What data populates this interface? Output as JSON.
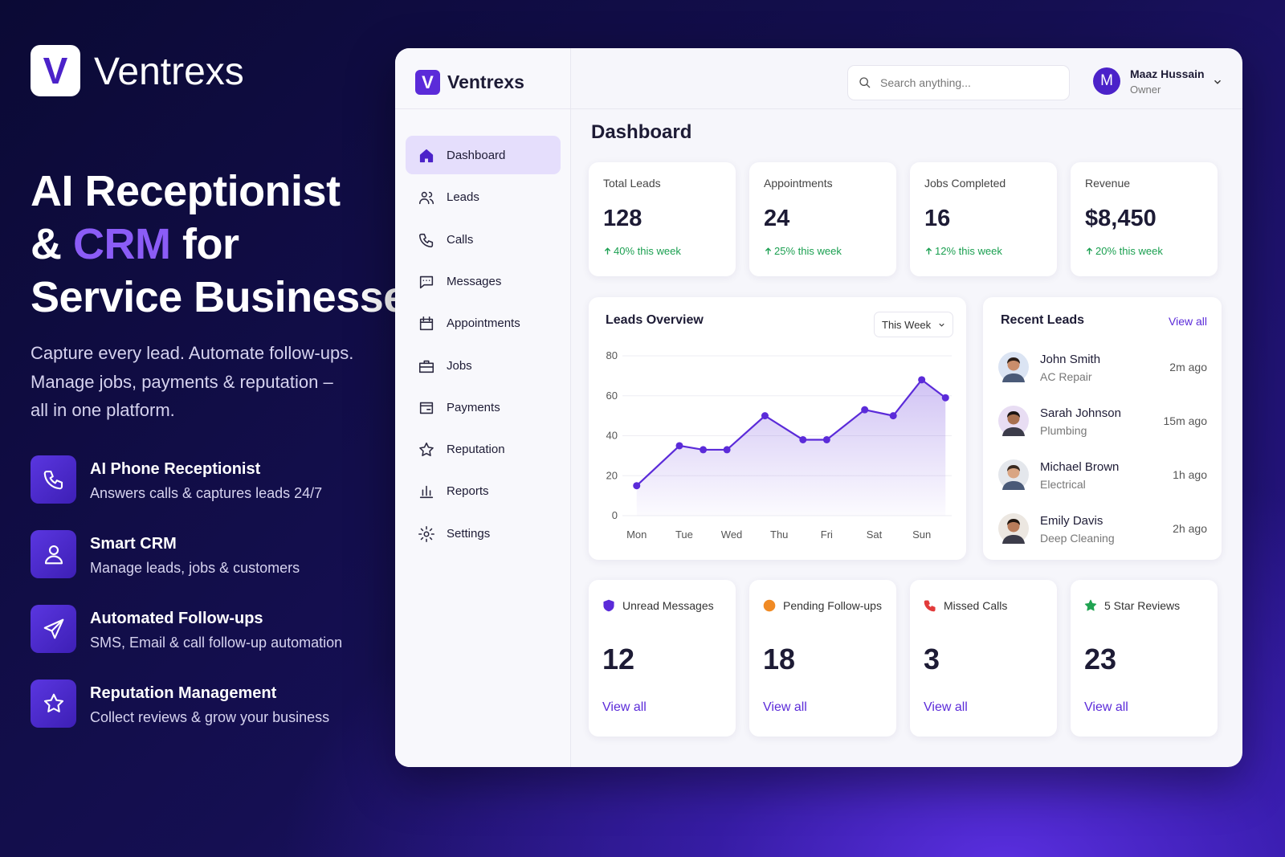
{
  "brand": {
    "logo": "V",
    "name": "Ventrexs"
  },
  "hero": {
    "title": {
      "line1": "AI Receptionist",
      "amp": "&",
      "highlight": "CRM",
      "after": "for",
      "line3": "Service Businesses"
    },
    "subtitle": [
      "Capture every lead. Automate follow-ups.",
      "Manage jobs, payments & reputation –",
      "all in one platform."
    ]
  },
  "features": [
    {
      "title": "AI Phone Receptionist",
      "description": "Answers calls & captures leads 24/7"
    },
    {
      "title": "Smart CRM",
      "description": "Manage leads, jobs & customers"
    },
    {
      "title": "Automated Follow-ups",
      "description": "SMS, Email & call follow-up automation"
    },
    {
      "title": "Reputation Management",
      "description": "Collect reviews & grow your business"
    }
  ],
  "app": {
    "logo": "V",
    "name": "Ventrexs",
    "search": "Search anything...",
    "user": {
      "initial": "M",
      "name": "Maaz Hussain",
      "role": "Owner"
    },
    "nav": [
      "Dashboard",
      "Leads",
      "Calls",
      "Messages",
      "Appointments",
      "Jobs",
      "Payments",
      "Reputation",
      "Reports",
      "Settings"
    ],
    "page_title": "Dashboard",
    "stats": [
      {
        "label": "Total Leads",
        "value": "128",
        "change": "40% this week"
      },
      {
        "label": "Appointments",
        "value": "24",
        "change": "25% this week"
      },
      {
        "label": "Jobs Completed",
        "value": "16",
        "change": "12% this week"
      },
      {
        "label": "Revenue",
        "value": "$8,450",
        "change": "20% this week"
      }
    ],
    "period": "This Week",
    "recent_leads": {
      "title": "Recent Leads",
      "link": "View all",
      "items": [
        {
          "name": "John Smith",
          "service": "AC Repair",
          "time": "2m ago"
        },
        {
          "name": "Sarah Johnson",
          "service": "Plumbing",
          "time": "15m ago"
        },
        {
          "name": "Michael Brown",
          "service": "Electrical",
          "time": "1h ago"
        },
        {
          "name": "Emily Davis",
          "service": "Deep Cleaning",
          "time": "2h ago"
        }
      ]
    },
    "counters": [
      {
        "label": "Unread Messages",
        "value": "12",
        "link": "View all"
      },
      {
        "label": "Pending Follow-ups",
        "value": "18",
        "link": "View all"
      },
      {
        "label": "Missed Calls",
        "value": "3",
        "link": "View all"
      },
      {
        "label": "5 Star Reviews",
        "value": "23",
        "link": "View all"
      }
    ]
  },
  "chart_data": {
    "type": "line",
    "title": "Leads Overview",
    "color": "#5b2bd9",
    "x": [
      0,
      0.9,
      1.4,
      1.9,
      2.7,
      3.5,
      4.0,
      4.8,
      5.4,
      6.0,
      6.5
    ],
    "values": [
      15,
      35,
      33,
      33,
      50,
      38,
      38,
      53,
      50,
      68,
      59
    ],
    "xlim": [
      -0.3,
      6.8
    ],
    "xticks": [
      {
        "value": 0,
        "label": "Mon"
      },
      {
        "value": 1,
        "label": "Tue"
      },
      {
        "value": 2,
        "label": "Wed"
      },
      {
        "value": 3,
        "label": "Thu"
      },
      {
        "value": 4,
        "label": "Fri"
      },
      {
        "value": 5,
        "label": "Sat"
      },
      {
        "value": 6,
        "label": "Sun"
      }
    ],
    "ylim": [
      0,
      80
    ],
    "yticks": [
      0,
      20,
      40,
      60,
      80
    ],
    "grid": true
  }
}
